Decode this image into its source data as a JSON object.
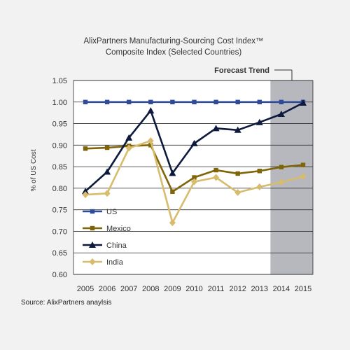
{
  "chart_data": {
    "type": "line",
    "title_line1": "AlixPartners Manufacturing-Sourcing Cost Index™",
    "title_line2": "Composite Index (Selected Countries)",
    "ylabel": "% of US Cost",
    "xlabel": "",
    "forecast_label": "Forecast Trend",
    "forecast_range": [
      2014,
      2015
    ],
    "source": "Source: AlixPartners anaylsis",
    "x": [
      2005,
      2006,
      2007,
      2008,
      2009,
      2010,
      2011,
      2012,
      2013,
      2014,
      2015
    ],
    "x_tick_labels": [
      "2005",
      "2006",
      "2007",
      "2008",
      "2009",
      "2010",
      "2011",
      "2012",
      "2013",
      "2014",
      "2015"
    ],
    "ylim": [
      0.6,
      1.05
    ],
    "y_ticks": [
      0.6,
      0.65,
      0.7,
      0.75,
      0.8,
      0.85,
      0.9,
      0.95,
      1.0,
      1.05
    ],
    "y_tick_labels": [
      "0.60",
      "0.65",
      "0.70",
      "0.75",
      "0.80",
      "0.85",
      "0.90",
      "0.95",
      "1.00",
      "1.05"
    ],
    "grid": "horizontal",
    "legend_position": "bottom-left",
    "series": [
      {
        "name": "US",
        "color": "#2e4a9b",
        "marker": "square",
        "values": [
          1.0,
          1.0,
          1.0,
          1.0,
          1.0,
          1.0,
          1.0,
          1.0,
          1.0,
          1.0,
          1.0
        ]
      },
      {
        "name": "Mexico",
        "color": "#7f6408",
        "marker": "square",
        "values": [
          0.892,
          0.894,
          0.898,
          0.9,
          0.792,
          0.825,
          0.842,
          0.834,
          0.84,
          0.849,
          0.854
        ]
      },
      {
        "name": "China",
        "color": "#0d1a3d",
        "marker": "triangle",
        "values": [
          0.793,
          0.838,
          0.917,
          0.98,
          0.835,
          0.904,
          0.939,
          0.935,
          0.953,
          0.972,
          0.998
        ]
      },
      {
        "name": "India",
        "color": "#d6bc6c",
        "marker": "diamond",
        "values": [
          0.785,
          0.788,
          0.893,
          0.91,
          0.72,
          0.815,
          0.825,
          0.79,
          0.803,
          0.814,
          0.827
        ]
      }
    ]
  }
}
